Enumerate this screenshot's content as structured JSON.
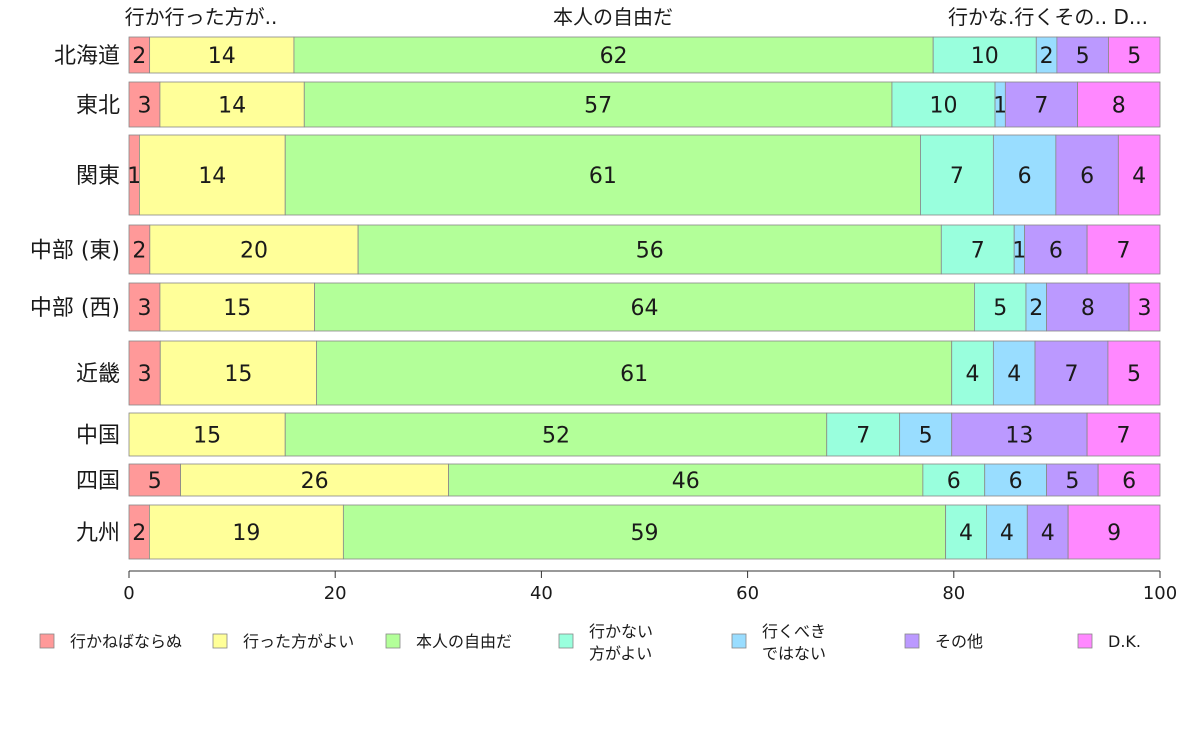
{
  "chart_data": {
    "type": "bar",
    "orientation": "horizontal",
    "stacked": true,
    "categories": [
      "北海道",
      "東北",
      "関東",
      "中部 (東)",
      "中部 (西)",
      "近畿",
      "中国",
      "四国",
      "九州"
    ],
    "xlim": [
      0,
      100
    ],
    "xticks": [
      "0",
      "20",
      "40",
      "60",
      "80",
      "100"
    ],
    "top_labels": [
      "行か行った方が..",
      "本人の自由だ",
      "行かな.行くその.. D..."
    ],
    "series": [
      {
        "name": "行かねばならぬ",
        "color": "#ff9999",
        "values": [
          2,
          3,
          1,
          2,
          3,
          3,
          0,
          5,
          2
        ]
      },
      {
        "name": "行った方がよい",
        "color": "#ffff99",
        "values": [
          14,
          14,
          14,
          20,
          15,
          15,
          15,
          26,
          19
        ]
      },
      {
        "name": "本人の自由だ",
        "color": "#b3ff99",
        "values": [
          62,
          57,
          61,
          56,
          64,
          61,
          52,
          46,
          59
        ]
      },
      {
        "name": "行かない方がよい",
        "legend_lines": [
          "行かない",
          "方がよい"
        ],
        "color": "#99ffdd",
        "values": [
          10,
          10,
          7,
          7,
          5,
          4,
          7,
          6,
          4
        ]
      },
      {
        "name": "行くべきではない",
        "legend_lines": [
          "行くべき",
          "ではない"
        ],
        "color": "#99ddff",
        "values": [
          2,
          1,
          6,
          1,
          2,
          4,
          5,
          6,
          4
        ]
      },
      {
        "name": "その他",
        "color": "#bb99ff",
        "values": [
          5,
          7,
          6,
          6,
          8,
          7,
          13,
          5,
          4
        ]
      },
      {
        "name": "D.K.",
        "color": "#ff88ff",
        "values": [
          5,
          8,
          4,
          7,
          3,
          5,
          7,
          6,
          9
        ]
      }
    ],
    "legend": "bottom",
    "grid": false
  }
}
